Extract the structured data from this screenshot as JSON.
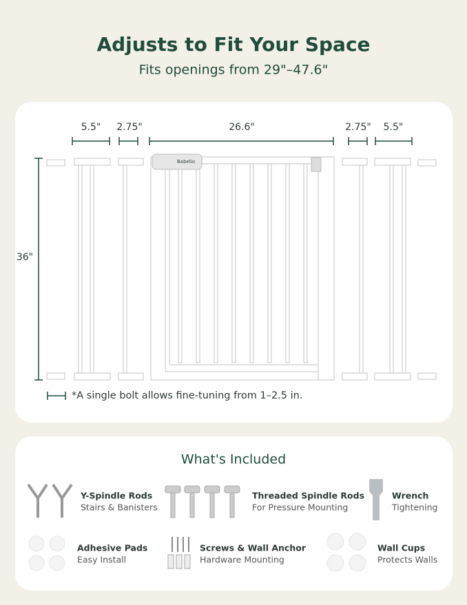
{
  "header": {
    "title": "Adjusts to Fit Your Space",
    "subtitle": "Fits openings from 29\"–47.6\""
  },
  "dimensions": {
    "widths": [
      "5.5\"",
      "2.75\"",
      "26.6\"",
      "2.75\"",
      "5.5\""
    ],
    "height": "36\"",
    "note": "*A single bolt allows fine-tuning from 1–2.5 in.",
    "brand": "Babelio"
  },
  "included": {
    "title": "What's Included",
    "items": [
      {
        "name": "Y-Spindle Rods",
        "desc": "Stairs & Banisters"
      },
      {
        "name": "Threaded Spindle Rods",
        "desc": "For Pressure Mounting"
      },
      {
        "name": "Wrench",
        "desc": "Tightening"
      },
      {
        "name": "Adhesive Pads",
        "desc": "Easy Install"
      },
      {
        "name": "Screws & Wall Anchor",
        "desc": "Hardware Mounting"
      },
      {
        "name": "Wall Cups",
        "desc": "Protects Walls"
      }
    ]
  }
}
